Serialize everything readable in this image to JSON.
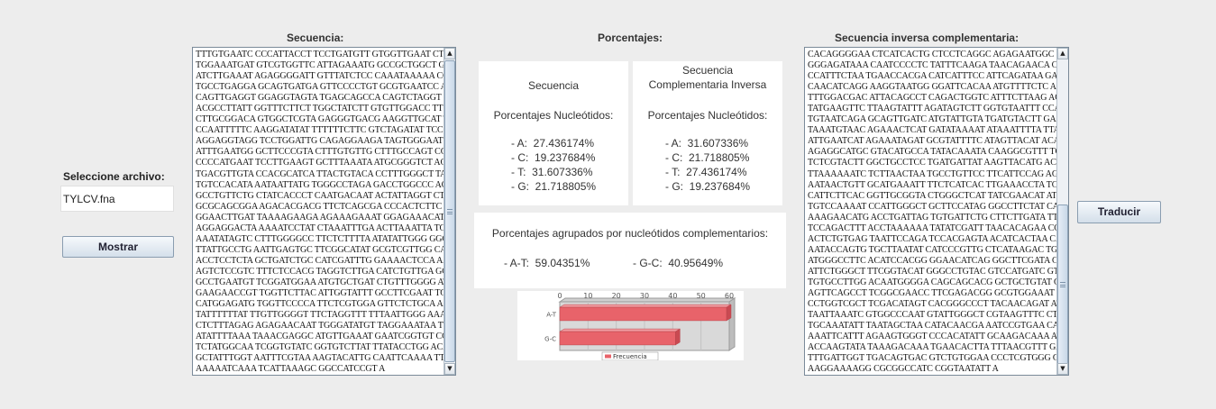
{
  "left_panel": {
    "select_label": "Seleccione archivo:",
    "file_name": "TYLCV.fna",
    "show_button": "Mostrar"
  },
  "sequence": {
    "title": "Secuencia:",
    "lines": [
      "TTTGTGAATC CCCATTACCT TCCTGATGTT GTGGTTGAAT CTTATCTGAA",
      "TGGAAATGAT GTCGTGGTTC ATTAGAAATG GCCGCTGGCT GTGTTCTGTT",
      "ATCTTGAAAT AGAGGGGATT GTTTATCTCC CAAATAAAAA CGCCATTCTC",
      "TGCCTGAGGA GCAGTGATGA GTTCCCCTGT GCGTGAATCC ATGATTGTTG",
      "CAGTTGAGGT GGAGGTAGTA TGAGCAGCCA CAGTCTAGGT CTACACGCTT",
      "ACGCCTTATT GGTTTCTTCT TGGCTATCTT GTGTTGGACC TTGATTGATA",
      "CTTGCGGACA GTGGCTCGTA GAGGGTGACG AAGGTTGCAT TCTTGAGCGC",
      "CCAATTTTTC AAGGATATAT TTTTTTCTTC GTCTAGATAT TCCCTATATG",
      "AGGAGGTAGG TCCTGGATTG CAGAGGAAGA TAGTGGGAAT TCCCCCTTTA",
      "ATTTGAATGG GCTTCCCGTA CTTTGTGTTG CTTTGCCAGT CCCTCTGGGC",
      "CCCCATGAAT TCCTTGAAGT GCTTTAAATA ATGCGGGTCT ACATCATCAA",
      "TGACGTTGTA CCACGCATCA TTACTGTACA CCTTTGGGCT TAGGTCTAGA",
      "TGTCCACATA AATAATTATG TGGGCCTAGA GACCTGGCCC ACATTGTTTT",
      "GCCTGTTCTG CTATCACCCT CAATGACAAT ACTATTAGGT CTCCATGGCC",
      "GCGCAGCGGA AGACACGACG TTCTCAGCGA CCCACTCTTC AAGTTCATCT",
      "GGAACTTGAT TAAAAGAAGA AGAAAGAAAT GGAGAAACAT AAACTTCTAA",
      "AGGAGGACTA AAAATCCTAT CTAAATTTGA ACTTAAATTA TGAAATTGTA",
      "AAATATAGTC CTTTGGGGCC TTCTCTTTTA ATATATTGGG GGCCTCGGAT",
      "TTATTGCCTG AATTGAGTGC TTCGGCATAT GCGTCGTTGG CAGATTGCTG",
      "ACCTCCTCTA GCTGATCTGC CATCGATTTG GAAAACTCCA AAATCAATGA",
      "AGTCTCCGTC TTTCTCCACG TAGGTCTTGA CATCTGTTGA GCTCTTAGCT",
      "GCCTGAATGT TCGGATGGAA ATGTGCTGAT CTGTTTGGGG ATACCAGGTC",
      "GAAGAACCGT TGGTTCTTAC ATTGGTATTT GCCTTCGAAT TGGATAAGCA",
      "CATGGAGATG TGGTTCCCCA TTCTCGTGGA GTTCTCTGCA AACTTTGATG",
      "TATTTTTTAT TTGTTGGGGT TTCTAGGTTT TTTAATTGGG AAAGTGCTTC",
      "CTCTTTAGAG AGAGAACAAT TGGGATATGT TAGGAAATAA TTTTTGGCAT",
      "ATATTTTAAA TAAACGAGGC ATGTTGAAAT GAATCGGTGT CCCTCAAAGC",
      "TCTATGGCAA TCGGTGTATC GGTGTCTTAT TTATACCTGG ACACCTAATG",
      "GCTATTTGGT AATTTCGTAA AAGTACATTG CAATTCAAAA TTCAAAATTC",
      "AAAAATCAAA TCATTAAAGC GGCCATCCGT A"
    ]
  },
  "percentages": {
    "title": "Porcentajes:",
    "left": {
      "heading": "Secuencia",
      "subheading": "Porcentajes Nucleótidos:",
      "rows": [
        "- A:  27.436174%",
        "- C:  19.237684%",
        "- T:  31.607336%",
        "- G:  21.718805%"
      ]
    },
    "right": {
      "heading_line1": "Secuencia",
      "heading_line2": "Complementaria Inversa",
      "subheading": "Porcentajes Nucleótidos:",
      "rows": [
        "- A:  31.607336%",
        "- C:  21.718805%",
        "- T:  27.436174%",
        "- G:  19.237684%"
      ]
    },
    "grouped": {
      "heading": "Porcentajes agrupados por nucleótidos complementarios:",
      "at": "- A-T:  59.04351%",
      "gc": "- G-C:  40.95649%"
    }
  },
  "chart_data": {
    "type": "bar",
    "orientation": "horizontal",
    "categories": [
      "A-T",
      "G-C"
    ],
    "series": [
      {
        "name": "Frecuencia",
        "values": [
          59.04351,
          40.95649
        ],
        "color": "#e8636a"
      }
    ],
    "xlim": [
      0,
      60
    ],
    "ticks": [
      "0",
      "10",
      "20",
      "30",
      "40",
      "50",
      "60"
    ],
    "legend": "bottom",
    "grid": true
  },
  "reverse_complement": {
    "title": "Secuencia inversa complementaria:",
    "lines": [
      "CACAGGGGAA CTCATCACTG CTCCTCAGGC AGAGAATGGC GTTTTTATTT",
      "GGGAGATAAA CAATCCCCTC TATTTCAAGA TAACAGAACA CAGCCAGCGG",
      "CCATTTCTAA TGAACCACGA CATCATTTCC ATTCAGATAA GATTCACCCA",
      "CAACATCAGG AAGGTAATGG GGATTCACAA ATGTTTTCTC AACTTCCGAA",
      "TTTGGACGAC ATTACAGCCT CAGACTGGTC ATTTCTTAAG AGTATTTAGA",
      "TATGAAGTTC TTAAGTATTT AGATAGTCTT GGTGTAATTT CCATTAACAA",
      "TGTAATCAGA GCAGTTGATC ATGTATTGTA TGATGTACTT GAAAACACAA",
      "TAAATGTAAC AGAAACTCAT GATATAAAAT ATAAATTTTA TTAATTTGAT",
      "ATTGAATCAT AGAAATAGAT GCGTATTTTC ATAGTTACAT ACACTGGATT",
      "AGAGGCATGC GTACATGCCA TATACAAATA CAAGGCGTTT TCAGTATGGT",
      "TCTCGTACTT GGCTGCCTCC TGATGATTAT AAGTTACATG ACTGTTAATT",
      "TTAAAAAATC TCTTAACTAA TGCCTGTTCC TTCATTCCAG AGGGCCCACC",
      "AATAACTGTT GCATGAAATT TTCTCATCAC TTGAAACCTA TCACGCAAAT",
      "CATTCTTCAC GGTTGCGGTA CTGGGCTCAT TATCGAACAT ATTAAAAACC",
      "TGTCCAAAAT CCATTGGGCT GCTTCCATAG GGCCTTCTAT CACGGACCAA",
      "AAAGAACATG ACCTGATTAG TGTGATTCTG CTTCTTGATA TTTTCATCCA",
      "TCCAGACTTT ACCTAAAAAA TATATCGATT TAACACAGAA CCTCTTACCC",
      "ACTCTGTGAG TAATTCCAGA TCCACGAGTA ACATCACTAA CACAACGGAC",
      "AATACCAGTG TGCTTAATAT CATCCCGTTG CTCATAAGAC TGGACTTTAC",
      "ATGGGCCTTC ACATCCACGG GGAACATCAG GGCTTCGATA CATTCTGTAT",
      "ATTCTGGGCT TTCGGTACAT GGGCCTGTAC GTCCATGATC GTCGCTTGTT",
      "TGTGCCTTGG ACAATGGGGA CAGCAGCACG GCTGCTGTAT GGGCTGTCGA",
      "AGTTCAGCCT TCGGCGAACC TTCGAGACGG GCGTGGAAAT GATTATATCG",
      "CCTGGTCGCT TCGACATAGT CACGGGCCCT TACAACAGAT ATAAGATCCC",
      "TAATTAAATC GTGGCCCAAT GTATTGGGCT CGTAAGTTTC CTCAACGGAC",
      "TGCAAATATT TAATAGCTAA CATACAACGA AATCCGTGAA CAGATTCAGG",
      "AAATTCATTT AGAAGTGGGT CCCACATATT GCAAGACAAA ATACTTGGGG",
      "ACCAAGTATA TAAAGACAAA TGAACACTTA TTTAACGTTT GAGTATGCAA",
      "TTTGATTGGT TGACAGTGAC GTCTGTGGAA CCCTCGTGGG GACCACATAA",
      "AAGGAAAAGG CGCGGCCATC CGGTAATATT A"
    ]
  },
  "translate_button": "Traducir"
}
